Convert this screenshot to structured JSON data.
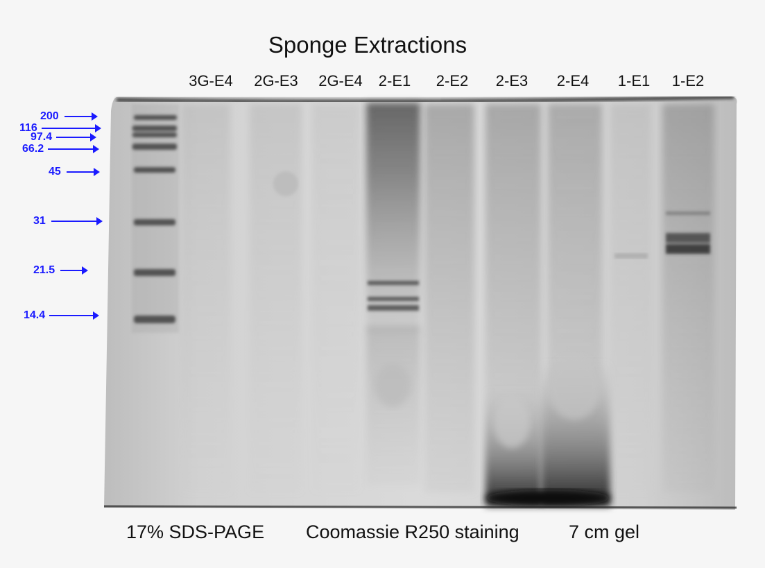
{
  "title": "Sponge Extractions",
  "lanes": [
    {
      "label": "3G-E4"
    },
    {
      "label": "2G-E3"
    },
    {
      "label": "2G-E4"
    },
    {
      "label": "2-E1"
    },
    {
      "label": "2-E2"
    },
    {
      "label": "2-E3"
    },
    {
      "label": "2-E4"
    },
    {
      "label": "1-E1"
    },
    {
      "label": "1-E2"
    }
  ],
  "markers": [
    {
      "label": "200"
    },
    {
      "label": "116"
    },
    {
      "label": "97.4"
    },
    {
      "label": "66.2"
    },
    {
      "label": "45"
    },
    {
      "label": "31"
    },
    {
      "label": "21.5"
    },
    {
      "label": "14.4"
    }
  ],
  "footer": {
    "gel_type": "17% SDS-PAGE",
    "stain": "Coomassie R250 staining",
    "gel_size": "7 cm gel"
  },
  "colors": {
    "marker_annotation": "#1a1aff"
  }
}
